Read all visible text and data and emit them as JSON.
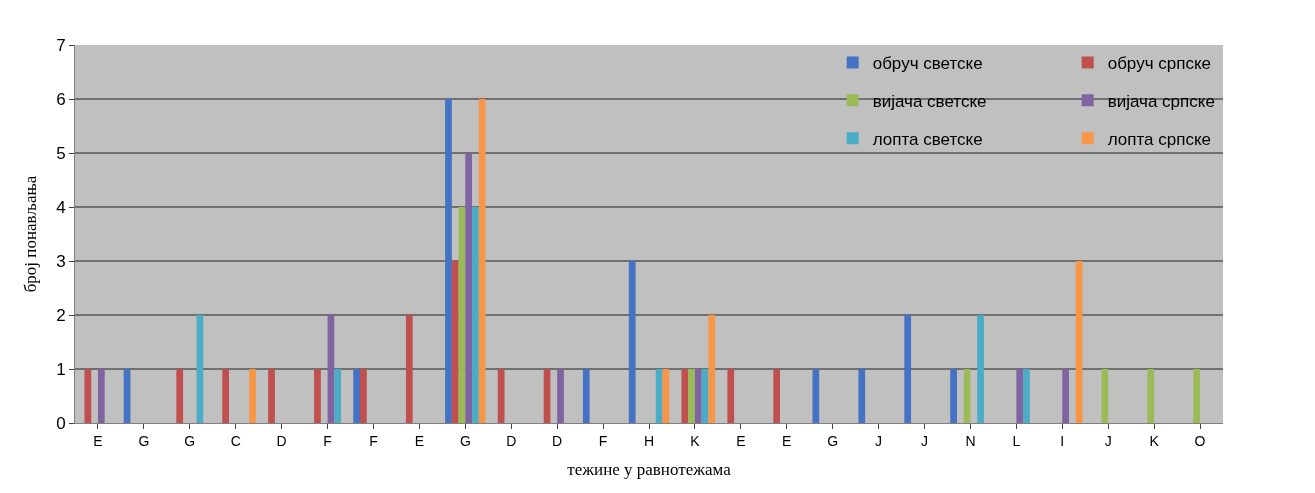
{
  "chart_data": {
    "type": "bar",
    "xlabel": "тежине у равнотежама",
    "ylabel": "број понављања",
    "categories": [
      "E",
      "G",
      "G",
      "C",
      "D",
      "F",
      "F",
      "E",
      "G",
      "D",
      "D",
      "F",
      "H",
      "K",
      "E",
      "E",
      "G",
      "J",
      "J",
      "N",
      "L",
      "I",
      "J",
      "K",
      "O"
    ],
    "series": [
      {
        "name": "обруч светске",
        "color": "#4472c4",
        "values": [
          null,
          1,
          null,
          null,
          null,
          null,
          1,
          null,
          6,
          null,
          null,
          1,
          3,
          null,
          null,
          null,
          1,
          1,
          2,
          1,
          null,
          null,
          null,
          null,
          null
        ]
      },
      {
        "name": "обруч српске",
        "color": "#c0504d",
        "values": [
          1,
          null,
          1,
          1,
          1,
          1,
          1,
          2,
          3,
          1,
          1,
          null,
          null,
          1,
          1,
          1,
          null,
          null,
          null,
          null,
          null,
          null,
          null,
          null,
          null
        ]
      },
      {
        "name": "вијача светске",
        "color": "#9bbb59",
        "values": [
          null,
          null,
          null,
          null,
          null,
          null,
          null,
          null,
          4,
          null,
          null,
          null,
          null,
          1,
          null,
          null,
          null,
          null,
          null,
          1,
          null,
          null,
          1,
          1,
          1
        ]
      },
      {
        "name": "вијача српске",
        "color": "#8064a2",
        "values": [
          1,
          null,
          null,
          null,
          null,
          2,
          null,
          null,
          5,
          null,
          1,
          null,
          null,
          1,
          null,
          null,
          null,
          null,
          null,
          null,
          1,
          1,
          null,
          null,
          null
        ]
      },
      {
        "name": "лопта светске",
        "color": "#4bacc6",
        "values": [
          null,
          null,
          2,
          null,
          null,
          1,
          null,
          null,
          4,
          null,
          null,
          null,
          1,
          1,
          null,
          null,
          null,
          null,
          null,
          2,
          1,
          null,
          null,
          null,
          null
        ]
      },
      {
        "name": "лопта српске",
        "color": "#f79646",
        "values": [
          null,
          null,
          null,
          1,
          null,
          null,
          null,
          null,
          6,
          null,
          null,
          null,
          1,
          2,
          null,
          null,
          null,
          null,
          null,
          null,
          null,
          3,
          null,
          null,
          null
        ]
      }
    ],
    "ylim": [
      0,
      7
    ],
    "yticks": [
      0,
      1,
      2,
      3,
      4,
      5,
      6,
      7
    ],
    "grid": "y",
    "legend": "top right"
  }
}
